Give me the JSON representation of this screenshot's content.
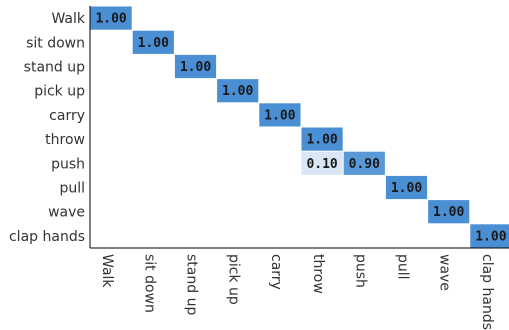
{
  "chart_data": {
    "type": "heatmap",
    "title": "",
    "xlabel": "",
    "ylabel": "",
    "rows": [
      "Walk",
      "sit down",
      "stand up",
      "pick up",
      "carry",
      "throw",
      "push",
      "pull",
      "wave",
      "clap hands"
    ],
    "columns": [
      "Walk",
      "sit down",
      "stand up",
      "pick up",
      "carry",
      "throw",
      "push",
      "pull",
      "wave",
      "clap hands"
    ],
    "cells": [
      {
        "row": "Walk",
        "col": "Walk",
        "value": 1.0,
        "label": "1.00"
      },
      {
        "row": "sit down",
        "col": "sit down",
        "value": 1.0,
        "label": "1.00"
      },
      {
        "row": "stand up",
        "col": "stand up",
        "value": 1.0,
        "label": "1.00"
      },
      {
        "row": "pick up",
        "col": "pick up",
        "value": 1.0,
        "label": "1.00"
      },
      {
        "row": "carry",
        "col": "carry",
        "value": 1.0,
        "label": "1.00"
      },
      {
        "row": "throw",
        "col": "throw",
        "value": 1.0,
        "label": "1.00"
      },
      {
        "row": "push",
        "col": "throw",
        "value": 0.1,
        "label": "0.10"
      },
      {
        "row": "push",
        "col": "push",
        "value": 0.9,
        "label": "0.90"
      },
      {
        "row": "pull",
        "col": "pull",
        "value": 1.0,
        "label": "1.00"
      },
      {
        "row": "wave",
        "col": "wave",
        "value": 1.0,
        "label": "1.00"
      },
      {
        "row": "clap hands",
        "col": "clap hands",
        "value": 1.0,
        "label": "1.00"
      }
    ],
    "colors": {
      "high": "#4a8fd4",
      "low": "#e8f0fa",
      "axis": "#000000",
      "text": "#333333"
    }
  }
}
